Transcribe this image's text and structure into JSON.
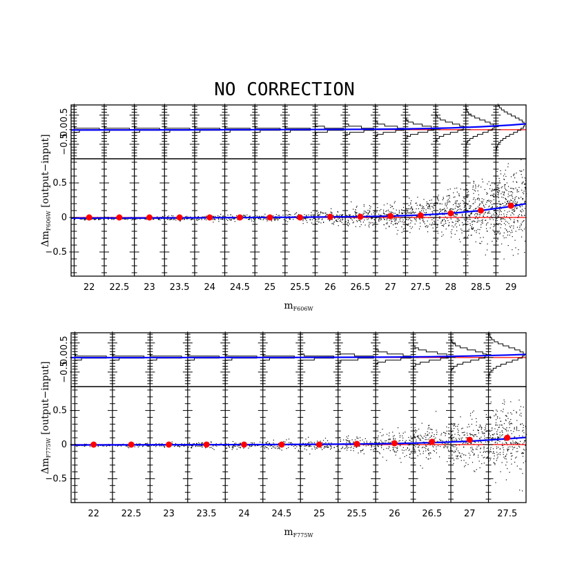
{
  "figure_title": "NO CORRECTION",
  "chart_data": [
    {
      "type": "scatter",
      "panel": "F606W",
      "xlabel": "m",
      "xlabel_sub": "F606W",
      "ylabel_prefix": "Δm",
      "ylabel_sub": "F606W",
      "ylabel_suffix": " [output−input]",
      "xlim": [
        21.7,
        29.25
      ],
      "xticks": [
        "22",
        "22.5",
        "23",
        "23.5",
        "24",
        "24.5",
        "25",
        "25.5",
        "26",
        "26.5",
        "27",
        "27.5",
        "28",
        "28.5",
        "29"
      ],
      "ylim": [
        -0.85,
        0.85
      ],
      "yticks": [
        "−0.5",
        "0",
        "0.5"
      ],
      "hist_ylim": [
        -1.0,
        0.85
      ],
      "hist_yticks": [
        "−0.5",
        "0.0",
        "0.5"
      ],
      "bin_edges": [
        21.75,
        22.25,
        22.75,
        23.25,
        23.75,
        24.25,
        24.75,
        25.25,
        25.75,
        26.25,
        26.75,
        27.25,
        27.75,
        28.25,
        28.75,
        29.25
      ],
      "medians": {
        "x": [
          22.0,
          22.5,
          23.0,
          23.5,
          24.0,
          24.5,
          25.0,
          25.5,
          26.0,
          26.5,
          27.0,
          27.5,
          28.0,
          28.5,
          29.0
        ],
        "y": [
          0.0,
          0.0,
          0.0,
          0.0,
          0.0,
          0.0,
          0.0,
          0.0,
          0.01,
          0.01,
          0.02,
          0.03,
          0.06,
          0.1,
          0.17
        ]
      },
      "bin_sigma": [
        0.01,
        0.01,
        0.01,
        0.015,
        0.02,
        0.02,
        0.025,
        0.03,
        0.05,
        0.07,
        0.09,
        0.12,
        0.16,
        0.22,
        0.3
      ],
      "fit_curve": {
        "x": [
          21.7,
          22.5,
          23.5,
          24.5,
          25.5,
          26.5,
          27.0,
          27.5,
          28.0,
          28.5,
          29.0,
          29.25
        ],
        "y": [
          -0.01,
          -0.008,
          -0.006,
          -0.002,
          0.004,
          0.012,
          0.02,
          0.035,
          0.06,
          0.1,
          0.16,
          0.2
        ]
      },
      "reference_line": 0,
      "colors": {
        "points": "#000000",
        "medians": "#ff0000",
        "fit": "#0000ff",
        "reference": "#ff0000"
      }
    },
    {
      "type": "scatter",
      "panel": "F775W",
      "xlabel": "m",
      "xlabel_sub": "F775W",
      "ylabel_prefix": "Δm",
      "ylabel_sub": "F775W",
      "ylabel_suffix": " [output−input]",
      "xlim": [
        21.7,
        27.75
      ],
      "xticks": [
        "22",
        "22.5",
        "23",
        "23.5",
        "24",
        "24.5",
        "25",
        "25.5",
        "26",
        "26.5",
        "27",
        "27.5"
      ],
      "ylim": [
        -0.85,
        0.85
      ],
      "yticks": [
        "−0.5",
        "0",
        "0.5"
      ],
      "hist_ylim": [
        -1.0,
        0.85
      ],
      "hist_yticks": [
        "−0.5",
        "0.0",
        "0.5"
      ],
      "bin_edges": [
        21.75,
        22.25,
        22.75,
        23.25,
        23.75,
        24.25,
        24.75,
        25.25,
        25.75,
        26.25,
        26.75,
        27.25,
        27.75
      ],
      "medians": {
        "x": [
          22.0,
          22.5,
          23.0,
          23.5,
          24.0,
          24.5,
          25.0,
          25.5,
          26.0,
          26.5,
          27.0,
          27.5
        ],
        "y": [
          0.0,
          0.0,
          0.0,
          0.0,
          0.0,
          0.0,
          0.0,
          0.01,
          0.02,
          0.04,
          0.07,
          0.1
        ]
      },
      "bin_sigma": [
        0.01,
        0.012,
        0.015,
        0.02,
        0.025,
        0.03,
        0.04,
        0.06,
        0.09,
        0.13,
        0.18,
        0.25
      ],
      "fit_curve": {
        "x": [
          21.7,
          22.5,
          23.5,
          24.5,
          25.5,
          26.0,
          26.5,
          27.0,
          27.5,
          27.75
        ],
        "y": [
          -0.005,
          -0.004,
          -0.002,
          0.001,
          0.008,
          0.015,
          0.028,
          0.05,
          0.085,
          0.105
        ]
      },
      "reference_line": 0,
      "colors": {
        "points": "#000000",
        "medians": "#ff0000",
        "fit": "#0000ff",
        "reference": "#ff0000"
      }
    }
  ]
}
